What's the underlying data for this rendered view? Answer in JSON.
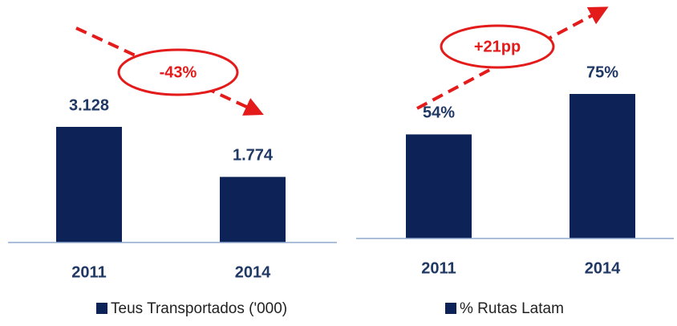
{
  "chart_data": [
    {
      "type": "bar",
      "categories": [
        "2011",
        "2014"
      ],
      "series": [
        {
          "name": "Teus Transportados ('000)",
          "color": "#0d2257",
          "values": [
            3128,
            1774
          ],
          "value_labels": [
            "3.128",
            "1.774"
          ]
        }
      ],
      "annotation": "-43%"
    },
    {
      "type": "bar",
      "categories": [
        "2011",
        "2014"
      ],
      "series": [
        {
          "name": "% Rutas Latam",
          "color": "#0d2257",
          "values": [
            54,
            75
          ],
          "value_labels": [
            "54%",
            "75%"
          ]
        }
      ],
      "annotation": "+21pp"
    }
  ]
}
